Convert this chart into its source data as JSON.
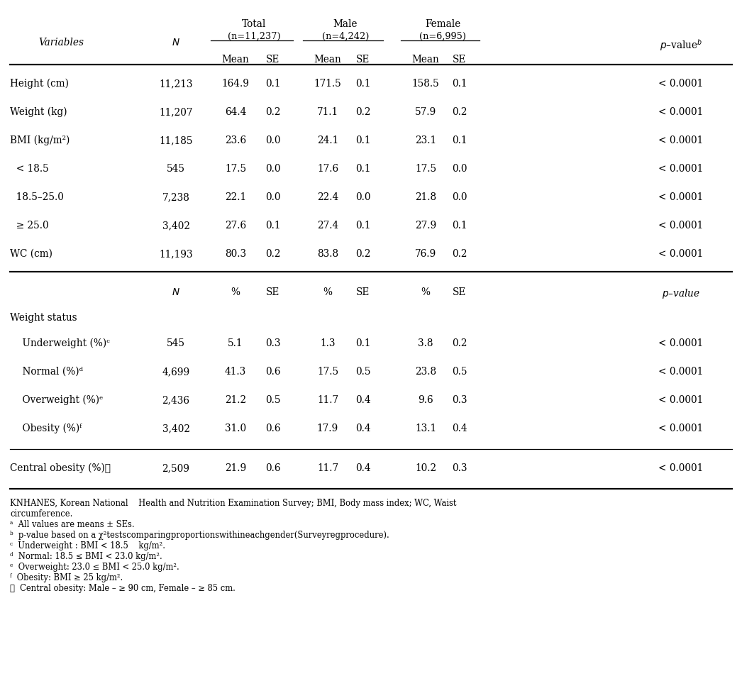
{
  "col_headers": {
    "variables": "Variables",
    "N": "N",
    "total_label": "Total",
    "total_n": "(n=11,237)",
    "male_label": "Male",
    "male_n": "(n=4,242)",
    "female_label": "Female",
    "female_n": "(n=6,995)",
    "pvalue_b": "p–value"
  },
  "rows_top": [
    {
      "var": "Height (cm)",
      "N": "11,213",
      "t_mean": "164.9",
      "t_se": "0.1",
      "m_mean": "171.5",
      "m_se": "0.1",
      "f_mean": "158.5",
      "f_se": "0.1",
      "pval": "< 0.0001"
    },
    {
      "var": "Weight (kg)",
      "N": "11,207",
      "t_mean": "64.4",
      "t_se": "0.2",
      "m_mean": "71.1",
      "m_se": "0.2",
      "f_mean": "57.9",
      "f_se": "0.2",
      "pval": "< 0.0001"
    },
    {
      "var": "BMI (kg/m²)",
      "N": "11,185",
      "t_mean": "23.6",
      "t_se": "0.0",
      "m_mean": "24.1",
      "m_se": "0.1",
      "f_mean": "23.1",
      "f_se": "0.1",
      "pval": "< 0.0001"
    },
    {
      "var": "  < 18.5",
      "N": "545",
      "t_mean": "17.5",
      "t_se": "0.0",
      "m_mean": "17.6",
      "m_se": "0.1",
      "f_mean": "17.5",
      "f_se": "0.0",
      "pval": "< 0.0001"
    },
    {
      "var": "  18.5–25.0",
      "N": "7,238",
      "t_mean": "22.1",
      "t_se": "0.0",
      "m_mean": "22.4",
      "m_se": "0.0",
      "f_mean": "21.8",
      "f_se": "0.0",
      "pval": "< 0.0001"
    },
    {
      "var": "  ≥ 25.0",
      "N": "3,402",
      "t_mean": "27.6",
      "t_se": "0.1",
      "m_mean": "27.4",
      "m_se": "0.1",
      "f_mean": "27.9",
      "f_se": "0.1",
      "pval": "< 0.0001"
    },
    {
      "var": "WC (cm)",
      "N": "11,193",
      "t_mean": "80.3",
      "t_se": "0.2",
      "m_mean": "83.8",
      "m_se": "0.2",
      "f_mean": "76.9",
      "f_se": "0.2",
      "pval": "< 0.0001"
    }
  ],
  "section_label": "Weight status",
  "rows_bottom": [
    {
      "var": "    Underweight (%)ᶜ",
      "N": "545",
      "t_pct": "5.1",
      "t_se": "0.3",
      "m_pct": "1.3",
      "m_se": "0.1",
      "f_pct": "3.8",
      "f_se": "0.2",
      "pval": "< 0.0001"
    },
    {
      "var": "    Normal (%)ᵈ",
      "N": "4,699",
      "t_pct": "41.3",
      "t_se": "0.6",
      "m_pct": "17.5",
      "m_se": "0.5",
      "f_pct": "23.8",
      "f_se": "0.5",
      "pval": "< 0.0001"
    },
    {
      "var": "    Overweight (%)ᵉ",
      "N": "2,436",
      "t_pct": "21.2",
      "t_se": "0.5",
      "m_pct": "11.7",
      "m_se": "0.4",
      "f_pct": "9.6",
      "f_se": "0.3",
      "pval": "< 0.0001"
    },
    {
      "var": "    Obesity (%)ᶠ",
      "N": "3,402",
      "t_pct": "31.0",
      "t_se": "0.6",
      "m_pct": "17.9",
      "m_se": "0.4",
      "f_pct": "13.1",
      "f_se": "0.4",
      "pval": "< 0.0001"
    }
  ],
  "central_obesity": {
    "var": "Central obesity (%)ᶍ",
    "N": "2,509",
    "t_pct": "21.9",
    "t_se": "0.6",
    "m_pct": "11.7",
    "m_se": "0.4",
    "f_pct": "10.2",
    "f_se": "0.3",
    "pval": "< 0.0001"
  },
  "footnotes": [
    [
      "KNHANES, Korean National    Health and Nutrition Examination Survey; BMI, Body mass index; WC, Waist",
      false
    ],
    [
      "circumference.",
      false
    ],
    [
      "ᵃ  All values are means ± SEs.",
      false
    ],
    [
      "ᵇ  p-value based on a χ²testscomparingproportionswithineachgender(Surveyregprocedure).",
      false
    ],
    [
      "ᶜ  Underweight : BMI < 18.5    kg/m².",
      false
    ],
    [
      "ᵈ  Normal: 18.5 ≤ BMI < 23.0 kg/m².",
      false
    ],
    [
      "ᵉ  Overweight: 23.0 ≤ BMI < 25.0 kg/m².",
      false
    ],
    [
      "ᶠ  Obesity: BMI ≥ 25 kg/m².",
      false
    ],
    [
      "ᶍ  Central obesity: Male – ≥ 90 cm, Female – ≥ 85 cm.",
      false
    ]
  ]
}
